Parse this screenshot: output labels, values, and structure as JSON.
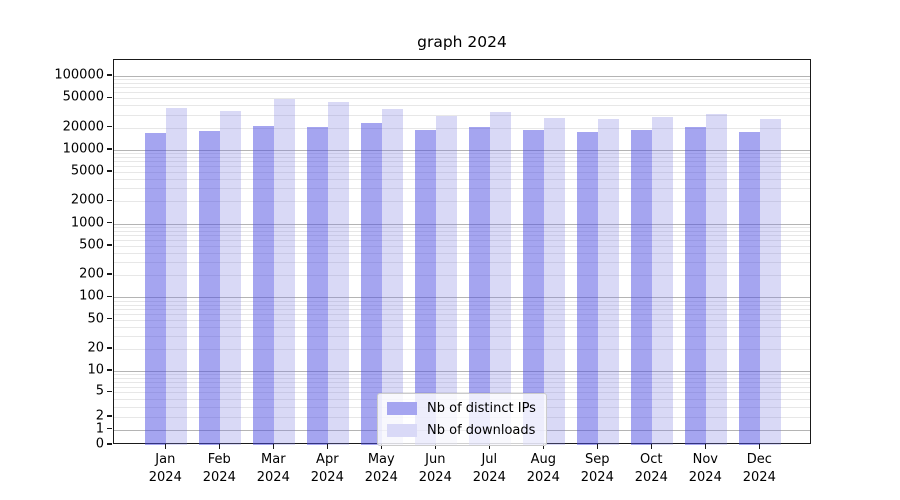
{
  "chart_data": {
    "type": "bar",
    "title": "graph 2024",
    "year_label": "2024",
    "categories": [
      "Jan 2024",
      "Feb 2024",
      "Mar 2024",
      "Apr 2024",
      "May 2024",
      "Jun 2024",
      "Jul 2024",
      "Aug 2024",
      "Sep 2024",
      "Oct 2024",
      "Nov 2024",
      "Dec 2024"
    ],
    "months": [
      "Jan",
      "Feb",
      "Mar",
      "Apr",
      "May",
      "Jun",
      "Jul",
      "Aug",
      "Sep",
      "Oct",
      "Nov",
      "Dec"
    ],
    "series": [
      {
        "name": "Nb of distinct IPs",
        "color": "#a5a5f0",
        "fill_rgba": "rgba(75,75,225,0.5)",
        "values": [
          17000,
          18000,
          21000,
          20500,
          23000,
          18500,
          20400,
          18600,
          17500,
          18700,
          20300,
          17600
        ]
      },
      {
        "name": "Nb of downloads",
        "color": "#d9d9f7",
        "fill_rgba": "rgba(128,128,226,0.3)",
        "values": [
          37000,
          33500,
          49500,
          44500,
          36000,
          29000,
          32400,
          27200,
          26000,
          28000,
          31000,
          26400
        ]
      }
    ],
    "y_axis": {
      "scale": "asinh",
      "ticks": [
        0,
        1,
        2,
        5,
        10,
        20,
        50,
        100,
        200,
        500,
        1000,
        2000,
        5000,
        10000,
        20000,
        50000,
        100000
      ],
      "ylim": [
        0,
        165000
      ]
    },
    "grid": {
      "major": "on",
      "minor": "on",
      "major_color": "#b4b4b4",
      "minor_color": "#e7e7e7"
    },
    "legend": {
      "position": "bottom-center"
    },
    "xlabel": "",
    "ylabel": ""
  }
}
